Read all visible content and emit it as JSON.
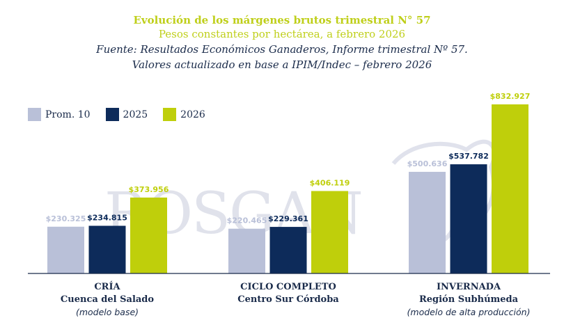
{
  "header": {
    "title": "Evolución de los márgenes brutos trimestral N° 57",
    "subtitle": "Pesos constantes por hectárea, a febrero 2026",
    "source_line1": "Fuente: Resultados Económicos Ganaderos, Informe trimestral Nº 57.",
    "source_line2": "Valores actualizado en base a IPIM/Indec – febrero 2026"
  },
  "watermark": "ROSGAN",
  "chart_data": {
    "type": "bar",
    "title": "Evolución de los márgenes brutos trimestral N° 57",
    "subtitle": "Pesos constantes por hectárea, a febrero 2026",
    "xlabel": "",
    "ylabel": "",
    "ylim": [
      0,
      832927
    ],
    "grid": false,
    "legend_position": "top-left",
    "categories": [
      {
        "line1": "CRÍA",
        "line2": "Cuenca del Salado",
        "line3": "(modelo base)"
      },
      {
        "line1": "CICLO COMPLETO",
        "line2": "Centro Sur Córdoba",
        "line3": ""
      },
      {
        "line1": "INVERNADA",
        "line2": "Región Subhúmeda",
        "line3": "(modelo de alta producción)"
      }
    ],
    "series": [
      {
        "name": "Prom. 10",
        "color": "#b9c0d8",
        "values": [
          230325,
          220465,
          500636
        ],
        "labels": [
          "$230.325",
          "$220.465",
          "$500.636"
        ]
      },
      {
        "name": "2025",
        "color": "#0d2b5a",
        "values": [
          234815,
          229361,
          537782
        ],
        "labels": [
          "$234.815",
          "$229.361",
          "$537.782"
        ]
      },
      {
        "name": "2026",
        "color": "#bfcf0b",
        "values": [
          373956,
          406119,
          832927
        ],
        "labels": [
          "$373.956",
          "$406.119",
          "$832.927"
        ]
      }
    ]
  }
}
